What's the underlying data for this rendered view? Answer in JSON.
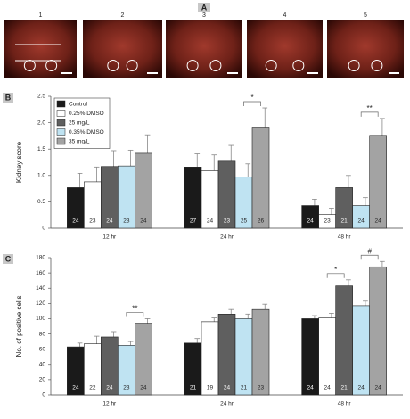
{
  "panel_a": {
    "letter": "A",
    "images": [
      "1",
      "2",
      "3",
      "4",
      "5"
    ]
  },
  "chart_data": [
    {
      "type": "bar",
      "panel": "B",
      "ylabel": "Kidney score",
      "categories": [
        "12 hr",
        "24 hr",
        "48 hr"
      ],
      "ylim": [
        0,
        2.5
      ],
      "yticks": [
        0,
        0.5,
        {
          "value": 1,
          "label": "1.0"
        },
        1.5,
        {
          "value": 2,
          "label": "2.0"
        },
        2.5
      ],
      "legend": "upper left",
      "series": [
        {
          "name": "Control",
          "color": "#1a1a1a",
          "values": [
            0.77,
            1.16,
            0.43
          ],
          "errors": [
            0.27,
            0.25,
            0.12
          ],
          "counts": [
            "24",
            "27",
            "24"
          ]
        },
        {
          "name": "0.25% DMSO",
          "color": "#ffffff",
          "values": [
            0.88,
            1.09,
            0.26
          ],
          "errors": [
            0.28,
            0.3,
            0.12
          ],
          "counts": [
            "23",
            "24",
            "23"
          ]
        },
        {
          "name": "25 mg/L",
          "color": "#5f5f5f",
          "values": [
            1.17,
            1.27,
            0.77
          ],
          "errors": [
            0.3,
            0.3,
            0.23
          ],
          "counts": [
            "24",
            "23",
            "21"
          ]
        },
        {
          "name": "0.35% DMSO",
          "color": "#bfe3f2",
          "values": [
            1.18,
            0.97,
            0.43
          ],
          "errors": [
            0.3,
            0.25,
            0.15
          ],
          "counts": [
            "23",
            "25",
            "24"
          ]
        },
        {
          "name": "35 mg/L",
          "color": "#a3a3a3",
          "values": [
            1.42,
            1.9,
            1.76
          ],
          "errors": [
            0.35,
            0.38,
            0.32
          ],
          "counts": [
            "24",
            "26",
            "24"
          ]
        }
      ],
      "annotations": [
        {
          "text": "*",
          "category": 1,
          "from": 3,
          "to": 4
        },
        {
          "text": "**",
          "category": 2,
          "from": 3,
          "to": 4
        }
      ]
    },
    {
      "type": "bar",
      "panel": "C",
      "ylabel": "No. of positive cells",
      "categories": [
        "12 hr",
        "24 hr",
        "48 hr"
      ],
      "ylim": [
        0,
        180
      ],
      "yticks": [
        0,
        20,
        40,
        60,
        80,
        100,
        120,
        140,
        160,
        180
      ],
      "series": [
        {
          "name": "Control",
          "color": "#1a1a1a",
          "values": [
            63,
            68,
            100
          ],
          "errors": [
            5,
            6,
            4
          ],
          "counts": [
            "24",
            "21",
            "24"
          ]
        },
        {
          "name": "0.25% DMSO",
          "color": "#ffffff",
          "values": [
            67,
            96,
            101
          ],
          "errors": [
            10,
            5,
            6
          ],
          "counts": [
            "22",
            "19",
            "24"
          ]
        },
        {
          "name": "25 mg/L",
          "color": "#5f5f5f",
          "values": [
            76,
            106,
            143
          ],
          "errors": [
            7,
            6,
            8
          ],
          "counts": [
            "24",
            "24",
            "21"
          ]
        },
        {
          "name": "0.35% DMSO",
          "color": "#bfe3f2",
          "values": [
            65,
            100,
            117
          ],
          "errors": [
            5,
            6,
            6
          ],
          "counts": [
            "23",
            "21",
            "24"
          ]
        },
        {
          "name": "35 mg/L",
          "color": "#a3a3a3",
          "values": [
            94,
            112,
            168
          ],
          "errors": [
            6,
            7,
            7
          ],
          "counts": [
            "24",
            "23",
            "24"
          ]
        }
      ],
      "annotations": [
        {
          "text": "**",
          "category": 0,
          "from": 3,
          "to": 4
        },
        {
          "text": "*",
          "category": 2,
          "from": 1,
          "to": 2
        },
        {
          "text": "#",
          "category": 2,
          "from": 3,
          "to": 4
        }
      ]
    }
  ]
}
